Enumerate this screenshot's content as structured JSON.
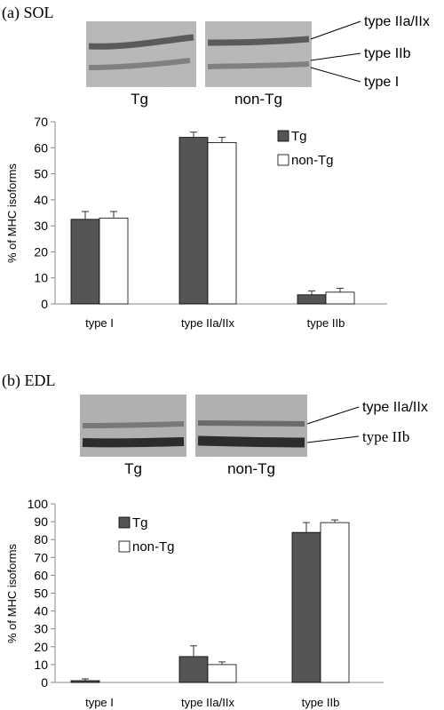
{
  "colors": {
    "tg": "#555555",
    "non_tg": "#ffffff",
    "axis": "#888888",
    "text": "#000000"
  },
  "chart_data": [
    {
      "panel_label": "(a) SOL",
      "type": "bar",
      "ylabel": "% of MHC isoforms",
      "ylim": [
        0,
        70
      ],
      "yticks": [
        0,
        10,
        20,
        30,
        40,
        50,
        60,
        70
      ],
      "categories": [
        "type I",
        "type IIa/IIx",
        "type IIb"
      ],
      "series": [
        {
          "name": "Tg",
          "values": [
            32.5,
            64,
            3.5
          ],
          "errors": [
            3,
            2,
            1.5
          ]
        },
        {
          "name": "non-Tg",
          "values": [
            33,
            62,
            4.5
          ],
          "errors": [
            2.5,
            2,
            1.5
          ]
        }
      ],
      "legend_position": "top-right",
      "gel": {
        "lane_labels": [
          "Tg",
          "non-Tg"
        ],
        "band_labels": [
          "type IIa/IIx",
          "type IIb",
          "type I"
        ]
      }
    },
    {
      "panel_label": "(b) EDL",
      "type": "bar",
      "ylabel": "% of MHC isoforms",
      "ylim": [
        0,
        100
      ],
      "yticks": [
        0,
        10,
        20,
        30,
        40,
        50,
        60,
        70,
        80,
        90,
        100
      ],
      "categories": [
        "type I",
        "type IIa/IIx",
        "type IIb"
      ],
      "series": [
        {
          "name": "Tg",
          "values": [
            1,
            14.5,
            84
          ],
          "errors": [
            1,
            6,
            5.5
          ]
        },
        {
          "name": "non-Tg",
          "values": [
            0,
            10,
            89.5
          ],
          "errors": [
            0,
            1.5,
            1.5
          ]
        }
      ],
      "legend_position": "top-left",
      "gel": {
        "lane_labels": [
          "Tg",
          "non-Tg"
        ],
        "band_labels": [
          "type IIa/IIx",
          "type IIb"
        ]
      }
    }
  ]
}
